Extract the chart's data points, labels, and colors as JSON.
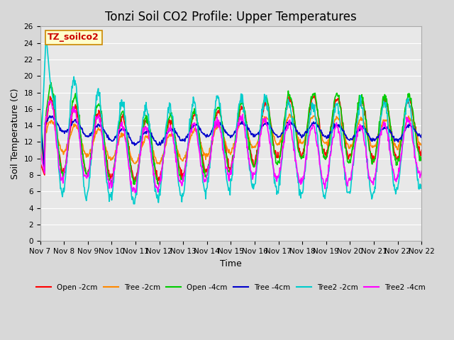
{
  "title": "Tonzi Soil CO2 Profile: Upper Temperatures",
  "xlabel": "Time",
  "ylabel": "Soil Temperature (C)",
  "ylim": [
    0,
    26
  ],
  "yticks": [
    0,
    2,
    4,
    6,
    8,
    10,
    12,
    14,
    16,
    18,
    20,
    22,
    24,
    26
  ],
  "xtick_labels": [
    "Nov 7",
    "Nov 8",
    "Nov 9",
    "Nov 10",
    "Nov 11",
    "Nov 12",
    "Nov 13",
    "Nov 14",
    "Nov 15",
    "Nov 16",
    "Nov 17",
    "Nov 18",
    "Nov 19",
    "Nov 20",
    "Nov 21",
    "Nov 22",
    "Nov 22"
  ],
  "n_days": 16,
  "series_names": [
    "Open -2cm",
    "Tree -2cm",
    "Open -4cm",
    "Tree -4cm",
    "Tree2 -2cm",
    "Tree2 -4cm"
  ],
  "series_colors": [
    "#ff0000",
    "#ff8800",
    "#00cc00",
    "#0000cc",
    "#00cccc",
    "#ff00ff"
  ],
  "series_lw": [
    1.2,
    1.2,
    1.2,
    1.2,
    1.2,
    1.2
  ],
  "watermark": "TZ_soilco2",
  "watermark_color": "#cc0000",
  "watermark_bg": "#ffffcc",
  "watermark_edge": "#cc8800",
  "fig_bg": "#d8d8d8",
  "plot_bg": "#e8e8e8",
  "grid_color": "#ffffff",
  "title_fontsize": 12,
  "tick_fontsize": 7.5,
  "label_fontsize": 9,
  "legend_fontsize": 7.5
}
